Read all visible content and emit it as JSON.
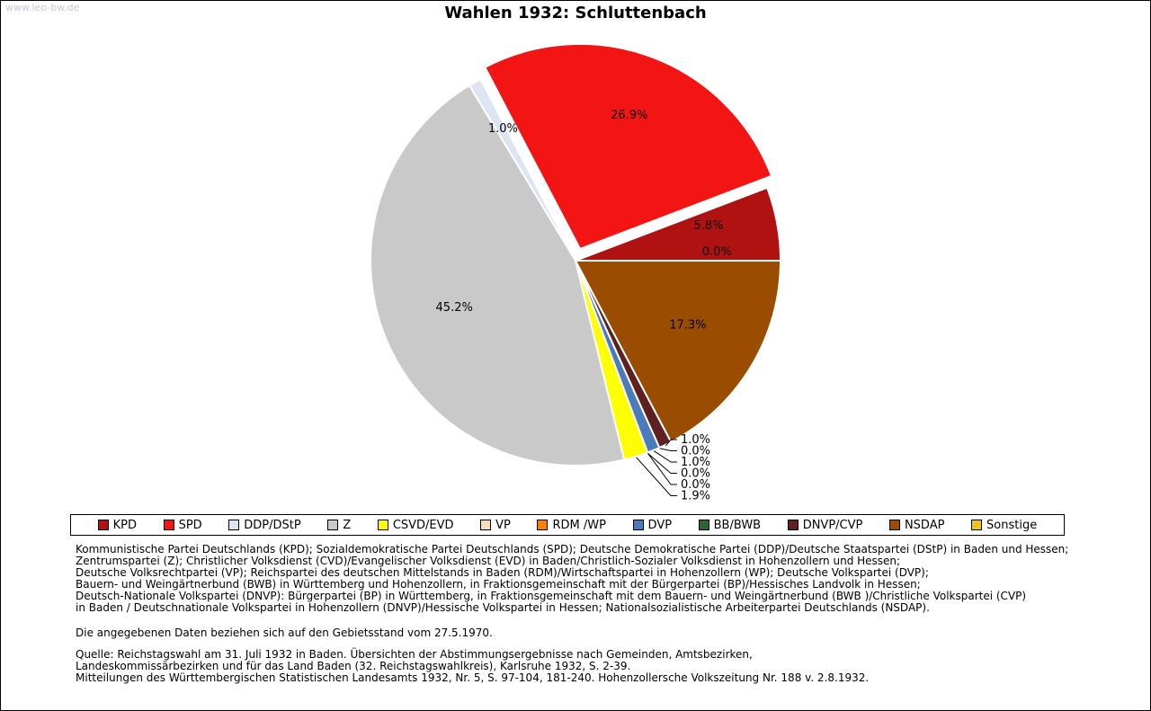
{
  "watermark": "www.leo-bw.de",
  "title": "Wahlen 1932: Schluttenbach",
  "chart_data": {
    "type": "pie",
    "title": "Wahlen 1932: Schluttenbach",
    "unit": "percent",
    "start_angle_deg": 0,
    "direction": "counterclockwise",
    "legend_position": "bottom",
    "series": [
      {
        "label": "KPD",
        "value": 5.8,
        "display": "5.8%",
        "color": "#b01111"
      },
      {
        "label": "SPD",
        "value": 26.9,
        "display": "26.9%",
        "color": "#f31414",
        "exploded": true
      },
      {
        "label": "DDP/DStP",
        "value": 1.0,
        "display": "1.0%",
        "color": "#dde4f2"
      },
      {
        "label": "Z",
        "value": 45.2,
        "display": "45.2%",
        "color": "#c9c9c9"
      },
      {
        "label": "CSVD/EVD",
        "value": 1.9,
        "display": "1.9%",
        "color": "#ffff00"
      },
      {
        "label": "VP",
        "value": 0.0,
        "display": "0.0%",
        "color": "#fbdcba"
      },
      {
        "label": "RDM /WP",
        "value": 0.0,
        "display": "0.0%",
        "color": "#fd7e00"
      },
      {
        "label": "DVP",
        "value": 1.0,
        "display": "1.0%",
        "color": "#4a7cbb"
      },
      {
        "label": "BB/BWB",
        "value": 0.0,
        "display": "0.0%",
        "color": "#2f6531"
      },
      {
        "label": "DNVP/CVP",
        "value": 1.0,
        "display": "1.0%",
        "color": "#5e2020"
      },
      {
        "label": "NSDAP",
        "value": 17.3,
        "display": "17.3%",
        "color": "#9a4c00"
      },
      {
        "label": "Sonstige",
        "value": 0.0,
        "display": "0.0%",
        "color": "#f0c41e"
      }
    ]
  },
  "notes": [
    "Kommunistische Partei Deutschlands (KPD); Sozialdemokratische Partei Deutschlands (SPD); Deutsche Demokratische Partei (DDP)/Deutsche Staatspartei (DStP) in Baden und Hessen;",
    "Zentrumspartei (Z); Christlicher Volksdienst (CVD)/Evangelischer Volksdienst (EVD) in Baden/Christlich-Sozialer Volksdienst in Hohenzollern und Hessen;",
    "Deutsche Volksrechtpartei (VP); Reichspartei des deutschen Mittelstands in Baden (RDM)/Wirtschaftspartei in Hohenzollern (WP); Deutsche Volkspartei (DVP);",
    "Bauern- und Weingärtnerbund (BWB) in Württemberg und Hohenzollern, in Fraktionsgemeinschaft mit der Bürgerpartei (BP)/Hessisches Landvolk in Hessen;",
    "Deutsch-Nationale Volkspartei (DNVP): Bürgerpartei (BP) in Württemberg, in Fraktionsgemeinschaft mit dem Bauern- und Weingärtnerbund (BWB )/Christliche Volkspartei (CVP)",
    "in Baden / Deutschnationale Volkspartei in Hohenzollern (DNVP)/Hessische Volkspartei in Hessen; Nationalsozialistische Arbeiterpartei Deutschlands (NSDAP)."
  ],
  "footnote": "Die angegebenen Daten beziehen sich auf den Gebietsstand vom 27.5.1970.",
  "source": [
    "Quelle: Reichstagswahl am 31. Juli 1932 in Baden. Übersichten der Abstimmungsergebnisse nach Gemeinden, Amtsbezirken,",
    "Landeskommissärbezirken und für das Land Baden (32. Reichstagswahlkreis), Karlsruhe 1932, S. 2-39.",
    "Mitteilungen des Württembergischen Statistischen Landesamts 1932, Nr. 5, S. 97-104, 181-240. Hohenzollersche Volkszeitung Nr. 188 v. 2.8.1932."
  ]
}
